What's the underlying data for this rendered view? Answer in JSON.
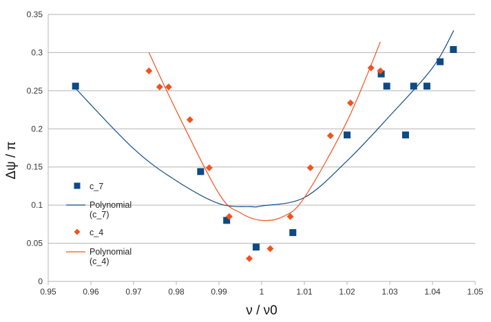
{
  "chart_data": {
    "type": "scatter",
    "xlabel": "ν / ν0",
    "ylabel": "Δψ / π",
    "xlim": [
      0.95,
      1.05
    ],
    "ylim": [
      0,
      0.35
    ],
    "xticks": [
      0.95,
      0.96,
      0.97,
      0.98,
      0.99,
      1,
      1.01,
      1.02,
      1.03,
      1.04,
      1.05
    ],
    "yticks": [
      0,
      0.05,
      0.1,
      0.15,
      0.2,
      0.25,
      0.3,
      0.35
    ],
    "grid": "horizontal",
    "legend_position": "left",
    "series": [
      {
        "name": "c_7",
        "kind": "points",
        "marker": "square",
        "color": "#0e4a84",
        "points": [
          [
            0.9564,
            0.256
          ],
          [
            0.9857,
            0.144
          ],
          [
            0.9918,
            0.08
          ],
          [
            0.9987,
            0.045
          ],
          [
            1.0073,
            0.064
          ],
          [
            1.02,
            0.192
          ],
          [
            1.028,
            0.272
          ],
          [
            1.0293,
            0.256
          ],
          [
            1.0356,
            0.256
          ],
          [
            1.0337,
            0.192
          ],
          [
            1.0387,
            0.256
          ],
          [
            1.0418,
            0.288
          ],
          [
            1.0449,
            0.304
          ]
        ]
      },
      {
        "name_lines": [
          "Polynomial",
          "(c_7)"
        ],
        "kind": "trendline",
        "color": "#0e4a84",
        "x_range": [
          0.9564,
          1.045
        ],
        "curve": [
          [
            0.9564,
            0.253
          ],
          [
            0.97,
            0.174
          ],
          [
            0.98,
            0.132
          ],
          [
            0.99,
            0.102
          ],
          [
            0.9975,
            0.098
          ],
          [
            1.0,
            0.099
          ],
          [
            1.01,
            0.11
          ],
          [
            1.02,
            0.158
          ],
          [
            1.03,
            0.217
          ],
          [
            1.04,
            0.28
          ],
          [
            1.045,
            0.329
          ]
        ]
      },
      {
        "name": "c_4",
        "kind": "points",
        "marker": "diamond",
        "color": "#f4511e",
        "points": [
          [
            0.9736,
            0.276
          ],
          [
            0.9761,
            0.255
          ],
          [
            0.9782,
            0.255
          ],
          [
            0.9832,
            0.212
          ],
          [
            0.9877,
            0.149
          ],
          [
            0.9924,
            0.085
          ],
          [
            0.9971,
            0.03
          ],
          [
            1.002,
            0.043
          ],
          [
            1.0067,
            0.085
          ],
          [
            1.0114,
            0.149
          ],
          [
            1.0161,
            0.191
          ],
          [
            1.0208,
            0.234
          ],
          [
            1.0256,
            0.28
          ],
          [
            1.0278,
            0.276
          ]
        ]
      },
      {
        "name_lines": [
          "Polynomial",
          "(c_4)"
        ],
        "kind": "trendline",
        "color": "#f4511e",
        "x_range": [
          0.9736,
          1.0278
        ],
        "curve": [
          [
            0.9736,
            0.3
          ],
          [
            0.98,
            0.224
          ],
          [
            0.99,
            0.115
          ],
          [
            0.995,
            0.09
          ],
          [
            1.0,
            0.08
          ],
          [
            1.005,
            0.085
          ],
          [
            1.01,
            0.11
          ],
          [
            1.02,
            0.21
          ],
          [
            1.0278,
            0.314
          ]
        ]
      }
    ]
  }
}
